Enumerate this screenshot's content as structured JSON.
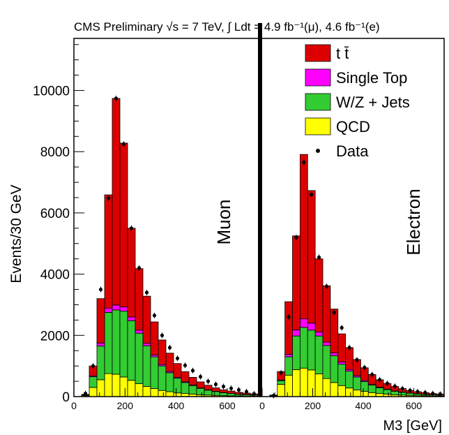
{
  "chart_data": {
    "type": "bar",
    "title": "CMS Preliminary √s = 7 TeV, ∫ Ldt = 4.9 fb⁻¹(μ), 4.6 fb⁻¹(e)",
    "ylabel": "Events/30 GeV",
    "xlabel": "M3 [GeV]",
    "ylim": [
      0,
      11700
    ],
    "yticks": [
      "0",
      "2000",
      "4000",
      "6000",
      "8000",
      "10000"
    ],
    "stacked": true,
    "bin_width": 30,
    "panels": [
      {
        "name": "Muon",
        "xlim": [
          0,
          720
        ],
        "xticks": [
          "0",
          "200",
          "400",
          "600"
        ],
        "bin_low_edges": [
          30,
          60,
          90,
          120,
          150,
          180,
          210,
          240,
          270,
          300,
          330,
          360,
          390,
          420,
          450,
          480,
          510,
          540,
          570,
          600,
          630,
          660,
          690
        ],
        "series": [
          {
            "name": "QCD",
            "color": "#ffff00",
            "values": [
              30,
              300,
              550,
              750,
              730,
              640,
              530,
              420,
              330,
              260,
              200,
              160,
              120,
              100,
              80,
              60,
              50,
              40,
              30,
              25,
              20,
              15,
              10
            ]
          },
          {
            "name": "W/Z + Jets",
            "color": "#33cc33",
            "values": [
              20,
              350,
              1100,
              2000,
              2100,
              2150,
              1950,
              1650,
              1330,
              1040,
              800,
              620,
              480,
              360,
              280,
              210,
              160,
              125,
              95,
              75,
              55,
              45,
              35
            ]
          },
          {
            "name": "Single Top",
            "color": "#ff00ff",
            "values": [
              5,
              30,
              100,
              140,
              160,
              140,
              120,
              100,
              80,
              60,
              50,
              40,
              30,
              25,
              20,
              15,
              12,
              10,
              8,
              6,
              5,
              4,
              3
            ]
          },
          {
            "name": "t t̄",
            "color": "#dd0000",
            "values": [
              15,
              320,
              1450,
              3700,
              6750,
              5350,
              2900,
              2010,
              1540,
              1080,
              800,
              600,
              450,
              330,
              250,
              195,
              150,
              110,
              90,
              75,
              60,
              50,
              40
            ]
          }
        ],
        "data": [
          100,
          1000,
          3500,
          6480,
          9740,
          8250,
          5500,
          4200,
          3400,
          2650,
          2000,
          1600,
          1250,
          1020,
          850,
          650,
          500,
          400,
          330,
          270,
          220,
          160,
          90
        ]
      },
      {
        "name": "Electron",
        "xlim": [
          0,
          720
        ],
        "xticks": [
          "0",
          "200",
          "400",
          "600"
        ],
        "bin_low_edges": [
          30,
          60,
          90,
          120,
          150,
          180,
          210,
          240,
          270,
          300,
          330,
          360,
          390,
          420,
          450,
          480,
          510,
          540,
          570,
          600,
          630,
          660,
          690
        ],
        "series": [
          {
            "name": "QCD",
            "color": "#ffff00",
            "values": [
              20,
              400,
              700,
              880,
              930,
              870,
              740,
              590,
              460,
              360,
              280,
              220,
              170,
              130,
              100,
              80,
              60,
              50,
              40,
              30,
              25,
              20,
              15
            ]
          },
          {
            "name": "W/Z + Jets",
            "color": "#33cc33",
            "values": [
              15,
              120,
              600,
              1100,
              1330,
              1300,
              1240,
              1080,
              880,
              700,
              550,
              420,
              320,
              250,
              190,
              150,
              115,
              90,
              70,
              55,
              45,
              35,
              30
            ]
          },
          {
            "name": "Single Top",
            "color": "#ff00ff",
            "values": [
              5,
              20,
              80,
              200,
              280,
              230,
              130,
              110,
              90,
              70,
              55,
              45,
              35,
              25,
              20,
              15,
              12,
              10,
              8,
              6,
              5,
              4,
              3
            ]
          },
          {
            "name": "t t̄",
            "color": "#dd0000",
            "values": [
              10,
              280,
              1720,
              3070,
              5370,
              4330,
              2390,
              1840,
              1430,
              920,
              715,
              525,
              415,
              315,
              240,
              185,
              143,
              110,
              82,
              69,
              55,
              41,
              32
            ]
          }
        ],
        "data": [
          30,
          780,
          2600,
          5200,
          7650,
          6600,
          4550,
          3600,
          2750,
          2250,
          1600,
          1200,
          950,
          720,
          550,
          430,
          340,
          260,
          200,
          160,
          130,
          100,
          80
        ]
      }
    ],
    "legend": {
      "placement": "top-right",
      "entries": [
        {
          "label": "t t̄",
          "color": "#dd0000",
          "kind": "box"
        },
        {
          "label": "Single Top",
          "color": "#ff00ff",
          "kind": "box"
        },
        {
          "label": "W/Z + Jets",
          "color": "#33cc33",
          "kind": "box"
        },
        {
          "label": "QCD",
          "color": "#ffff00",
          "kind": "box"
        },
        {
          "label": "Data",
          "color": "#000000",
          "kind": "marker"
        }
      ]
    }
  }
}
